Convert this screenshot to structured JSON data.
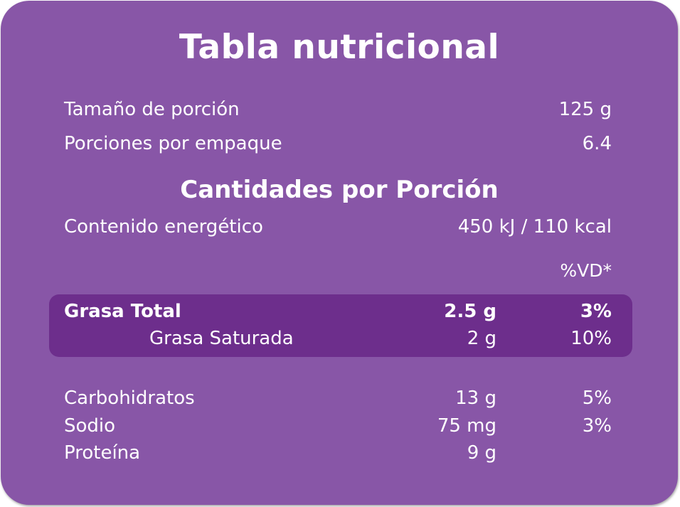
{
  "title": "Tabla nutricional",
  "serving": [
    {
      "label": "Tamaño de porción",
      "value": "125 g"
    },
    {
      "label": "Porciones por empaque",
      "value": "6.4"
    }
  ],
  "amounts_heading": "Cantidades por Porción",
  "energy": {
    "label": "Contenido energético",
    "value": "450 kJ / 110 kcal"
  },
  "vd_header": "%VD*",
  "fat": [
    {
      "label": "Grasa Total",
      "amount": "2.5 g",
      "percent": "3%"
    },
    {
      "label": "Grasa Saturada",
      "amount": "2 g",
      "percent": "10%"
    }
  ],
  "nutrients": [
    {
      "label": "Carbohidratos",
      "amount": "13 g",
      "percent": "5%"
    },
    {
      "label": "Sodio",
      "amount": "75 mg",
      "percent": "3%"
    },
    {
      "label": "Proteína",
      "amount": "9 g",
      "percent": ""
    }
  ],
  "colors": {
    "background": "#8856a7",
    "highlight": "#6d2e8c",
    "text": "#ffffff"
  }
}
